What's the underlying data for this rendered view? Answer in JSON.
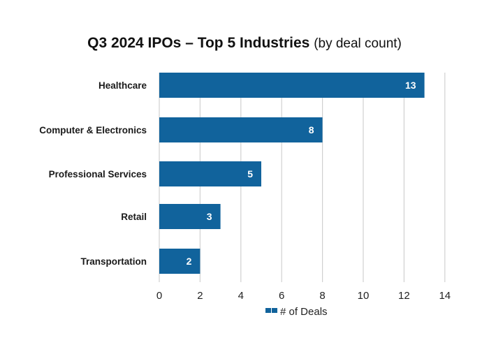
{
  "colors": {
    "bar": "#11639c",
    "grid": "#d0d0d0"
  },
  "chart_data": {
    "type": "bar",
    "orientation": "horizontal",
    "title": "Q3 2024 IPOs – Top 5 Industries",
    "subtitle": "(by deal count)",
    "categories": [
      "Healthcare",
      "Computer & Electronics",
      "Professional Services",
      "Retail",
      "Transportation"
    ],
    "series": [
      {
        "name": "# of Deals",
        "values": [
          13,
          8,
          5,
          3,
          2
        ]
      }
    ],
    "xlabel": "",
    "ylabel": "",
    "xlim": [
      0,
      14
    ],
    "xticks": [
      0,
      2,
      4,
      6,
      8,
      10,
      12,
      14
    ],
    "grid": true,
    "legend": "bottom-center",
    "data_labels": true
  }
}
